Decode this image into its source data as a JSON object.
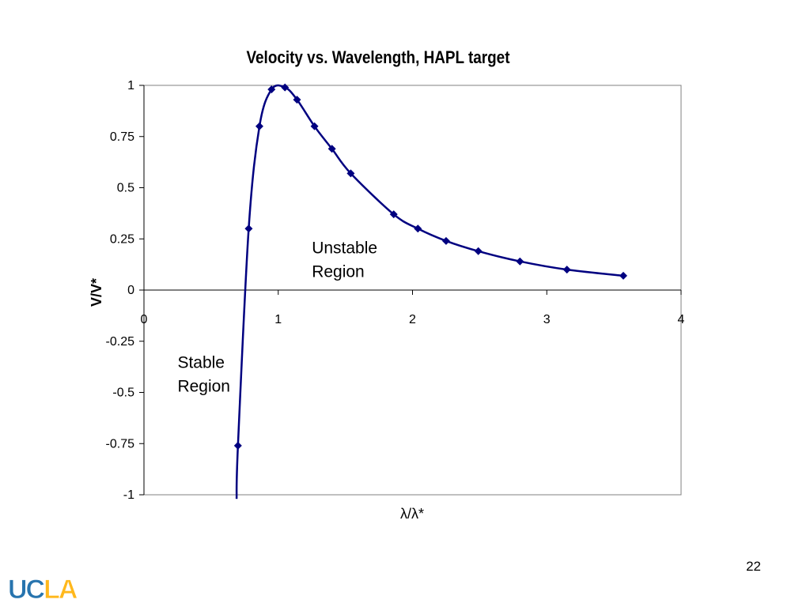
{
  "slide": {
    "page_number": "22"
  },
  "logo": {
    "text": "UCLA",
    "colors": {
      "uc": "#2774AE",
      "la": "#FFB81C"
    }
  },
  "chart_data": {
    "type": "line",
    "title": "Velocity vs. Wavelength, HAPL target",
    "xlabel": "λ/λ*",
    "ylabel": "V/V*",
    "xlim": [
      0,
      4
    ],
    "ylim": [
      -1,
      1
    ],
    "x_ticks": [
      "0",
      "1",
      "2",
      "3",
      "4"
    ],
    "y_ticks": [
      "-1",
      "-0.75",
      "-0.5",
      "-0.25",
      "0",
      "0.25",
      "0.5",
      "0.75",
      "1"
    ],
    "grid": false,
    "legend": "none",
    "color": "#000080",
    "series": [
      {
        "marker": "diamond",
        "x": [
          0.7,
          0.78,
          0.86,
          0.95,
          1.05,
          1.14,
          1.27,
          1.4,
          1.54,
          1.86,
          2.04,
          2.25,
          2.49,
          2.8,
          3.15,
          3.57
        ],
        "y": [
          -0.76,
          0.3,
          0.8,
          0.98,
          0.99,
          0.93,
          0.8,
          0.69,
          0.57,
          0.37,
          0.3,
          0.24,
          0.19,
          0.14,
          0.1,
          0.07
        ]
      }
    ],
    "curve_tail": {
      "x": 0.69,
      "y": -1.02
    },
    "annotations": [
      {
        "lines": [
          "Unstable",
          "Region"
        ],
        "x": 1.25,
        "y": 0.18
      },
      {
        "lines": [
          "Stable",
          "Region"
        ],
        "x": 0.25,
        "y": -0.38
      }
    ]
  }
}
